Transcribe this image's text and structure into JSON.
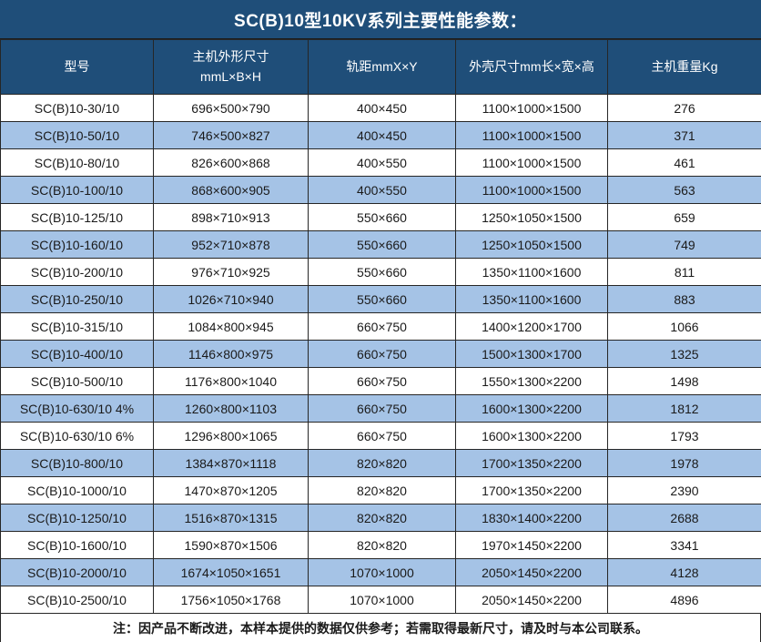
{
  "title": "SC(B)10型10KV系列主要性能参数：",
  "colors": {
    "header_bg": "#1F4E79",
    "header_text": "#FFFFFF",
    "row_bg": "#FFFFFF",
    "row_alt_bg": "#A5C3E6",
    "border": "#262626",
    "body_text": "#1A1A1A"
  },
  "table": {
    "columns": [
      {
        "label": "型号"
      },
      {
        "label": "主机外形尺寸",
        "label2": "mmL×B×H"
      },
      {
        "label": "轨距mmX×Y"
      },
      {
        "label": "外壳尺寸mm长×宽×高"
      },
      {
        "label": "主机重量Kg"
      }
    ],
    "rows": [
      [
        "SC(B)10-30/10",
        "696×500×790",
        "400×450",
        "1100×1000×1500",
        "276"
      ],
      [
        "SC(B)10-50/10",
        "746×500×827",
        "400×450",
        "1100×1000×1500",
        "371"
      ],
      [
        "SC(B)10-80/10",
        "826×600×868",
        "400×550",
        "1100×1000×1500",
        "461"
      ],
      [
        "SC(B)10-100/10",
        "868×600×905",
        "400×550",
        "1100×1000×1500",
        "563"
      ],
      [
        "SC(B)10-125/10",
        "898×710×913",
        "550×660",
        "1250×1050×1500",
        "659"
      ],
      [
        "SC(B)10-160/10",
        "952×710×878",
        "550×660",
        "1250×1050×1500",
        "749"
      ],
      [
        "SC(B)10-200/10",
        "976×710×925",
        "550×660",
        "1350×1100×1600",
        "811"
      ],
      [
        "SC(B)10-250/10",
        "1026×710×940",
        "550×660",
        "1350×1100×1600",
        "883"
      ],
      [
        "SC(B)10-315/10",
        "1084×800×945",
        "660×750",
        "1400×1200×1700",
        "1066"
      ],
      [
        "SC(B)10-400/10",
        "1146×800×975",
        "660×750",
        "1500×1300×1700",
        "1325"
      ],
      [
        "SC(B)10-500/10",
        "1176×800×1040",
        "660×750",
        "1550×1300×2200",
        "1498"
      ],
      [
        "SC(B)10-630/10 4%",
        "1260×800×1103",
        "660×750",
        "1600×1300×2200",
        "1812"
      ],
      [
        "SC(B)10-630/10 6%",
        "1296×800×1065",
        "660×750",
        "1600×1300×2200",
        "1793"
      ],
      [
        "SC(B)10-800/10",
        "1384×870×1118",
        "820×820",
        "1700×1350×2200",
        "1978"
      ],
      [
        "SC(B)10-1000/10",
        "1470×870×1205",
        "820×820",
        "1700×1350×2200",
        "2390"
      ],
      [
        "SC(B)10-1250/10",
        "1516×870×1315",
        "820×820",
        "1830×1400×2200",
        "2688"
      ],
      [
        "SC(B)10-1600/10",
        "1590×870×1506",
        "820×820",
        "1970×1450×2200",
        "3341"
      ],
      [
        "SC(B)10-2000/10",
        "1674×1050×1651",
        "1070×1000",
        "2050×1450×2200",
        "4128"
      ],
      [
        "SC(B)10-2500/10",
        "1756×1050×1768",
        "1070×1000",
        "2050×1450×2200",
        "4896"
      ]
    ]
  },
  "footer": {
    "note": "注：因产品不断改进，本样本提供的数据仅供参考；若需取得最新尺寸，请及时与本公司联系。"
  }
}
